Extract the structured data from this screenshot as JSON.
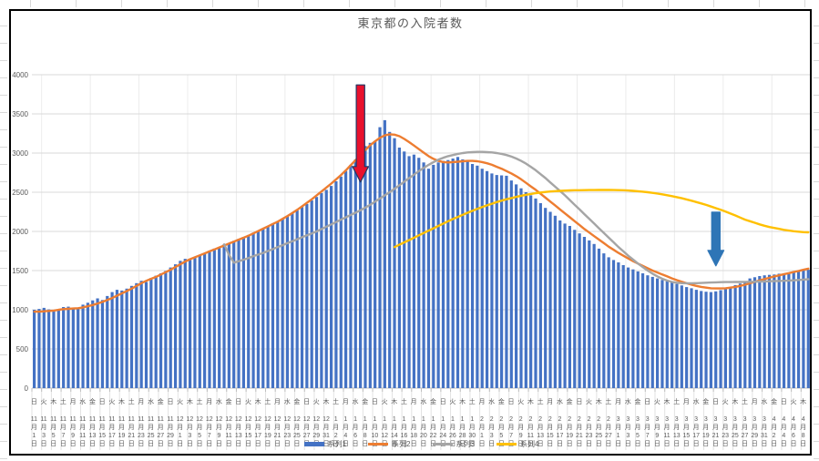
{
  "title": "東京都の入院者数",
  "legend": [
    {
      "label": "系列1",
      "color": "#4472c4",
      "marker": "bar"
    },
    {
      "label": "系列2",
      "color": "#ed7d31",
      "marker": "line"
    },
    {
      "label": "系列3",
      "color": "#a5a5a5",
      "marker": "line"
    },
    {
      "label": "系列4",
      "color": "#ffc000",
      "marker": "line"
    }
  ],
  "annotations": [
    {
      "name": "red-arrow",
      "direction": "down",
      "fill": "#e8112d",
      "outline": "#1f3864",
      "day_index": 67,
      "from_value": 3870,
      "to_value": 2630
    },
    {
      "name": "blue-arrow",
      "direction": "down",
      "fill": "#2e75b6",
      "outline": "#2e75b6",
      "day_index": 140,
      "from_value": 2245,
      "to_value": 1560
    }
  ],
  "chart_data": {
    "type": "bar",
    "title": "東京都の入院者数",
    "ylim": [
      0,
      4000
    ],
    "y_ticks": [
      0,
      500,
      1000,
      1500,
      2000,
      2500,
      3000,
      3500,
      4000
    ],
    "grid": true,
    "gridline_color": "#d9d9d9",
    "x_label_interval_days": 2,
    "x_labels": [
      [
        "日",
        "11",
        "1"
      ],
      [
        "火",
        "11",
        "3"
      ],
      [
        "木",
        "11",
        "5"
      ],
      [
        "土",
        "11",
        "7"
      ],
      [
        "月",
        "11",
        "9"
      ],
      [
        "水",
        "11",
        "11"
      ],
      [
        "金",
        "11",
        "13"
      ],
      [
        "日",
        "11",
        "15"
      ],
      [
        "火",
        "11",
        "17"
      ],
      [
        "木",
        "11",
        "19"
      ],
      [
        "土",
        "11",
        "21"
      ],
      [
        "月",
        "11",
        "23"
      ],
      [
        "水",
        "11",
        "25"
      ],
      [
        "金",
        "11",
        "27"
      ],
      [
        "日",
        "11",
        "29"
      ],
      [
        "火",
        "12",
        "1"
      ],
      [
        "木",
        "12",
        "3"
      ],
      [
        "土",
        "12",
        "5"
      ],
      [
        "月",
        "12",
        "7"
      ],
      [
        "水",
        "12",
        "9"
      ],
      [
        "金",
        "12",
        "11"
      ],
      [
        "日",
        "12",
        "13"
      ],
      [
        "火",
        "12",
        "15"
      ],
      [
        "木",
        "12",
        "17"
      ],
      [
        "土",
        "12",
        "19"
      ],
      [
        "月",
        "12",
        "21"
      ],
      [
        "水",
        "12",
        "23"
      ],
      [
        "金",
        "12",
        "25"
      ],
      [
        "日",
        "12",
        "27"
      ],
      [
        "火",
        "12",
        "29"
      ],
      [
        "木",
        "12",
        "31"
      ],
      [
        "土",
        "1",
        "2"
      ],
      [
        "月",
        "1",
        "4"
      ],
      [
        "水",
        "1",
        "6"
      ],
      [
        "金",
        "1",
        "8"
      ],
      [
        "日",
        "1",
        "10"
      ],
      [
        "火",
        "1",
        "12"
      ],
      [
        "木",
        "1",
        "14"
      ],
      [
        "土",
        "1",
        "16"
      ],
      [
        "月",
        "1",
        "18"
      ],
      [
        "水",
        "1",
        "20"
      ],
      [
        "金",
        "1",
        "22"
      ],
      [
        "日",
        "1",
        "24"
      ],
      [
        "火",
        "1",
        "26"
      ],
      [
        "木",
        "1",
        "28"
      ],
      [
        "土",
        "1",
        "30"
      ],
      [
        "月",
        "2",
        "1"
      ],
      [
        "水",
        "2",
        "3"
      ],
      [
        "金",
        "2",
        "5"
      ],
      [
        "日",
        "2",
        "7"
      ],
      [
        "火",
        "2",
        "9"
      ],
      [
        "木",
        "2",
        "11"
      ],
      [
        "土",
        "2",
        "13"
      ],
      [
        "月",
        "2",
        "15"
      ],
      [
        "水",
        "2",
        "17"
      ],
      [
        "金",
        "2",
        "19"
      ],
      [
        "日",
        "2",
        "21"
      ],
      [
        "火",
        "2",
        "23"
      ],
      [
        "木",
        "2",
        "25"
      ],
      [
        "土",
        "2",
        "27"
      ],
      [
        "月",
        "3",
        "1"
      ],
      [
        "水",
        "3",
        "3"
      ],
      [
        "金",
        "3",
        "5"
      ],
      [
        "日",
        "3",
        "7"
      ],
      [
        "火",
        "3",
        "9"
      ],
      [
        "木",
        "3",
        "11"
      ],
      [
        "土",
        "3",
        "13"
      ],
      [
        "月",
        "3",
        "15"
      ],
      [
        "水",
        "3",
        "17"
      ],
      [
        "金",
        "3",
        "19"
      ],
      [
        "日",
        "3",
        "21"
      ],
      [
        "火",
        "3",
        "23"
      ],
      [
        "木",
        "3",
        "25"
      ],
      [
        "土",
        "3",
        "27"
      ],
      [
        "月",
        "3",
        "29"
      ],
      [
        "水",
        "3",
        "31"
      ],
      [
        "金",
        "4",
        "2"
      ],
      [
        "日",
        "4",
        "4"
      ],
      [
        "火",
        "4",
        "6"
      ],
      [
        "木",
        "4",
        "8"
      ]
    ],
    "series": [
      {
        "name": "系列1",
        "type": "bar",
        "color": "#4472c4",
        "start_index": 0,
        "values": [
          1000,
          1010,
          1025,
          1005,
          990,
          1000,
          1035,
          1040,
          1015,
          1010,
          1065,
          1090,
          1120,
          1145,
          1125,
          1175,
          1225,
          1255,
          1245,
          1270,
          1305,
          1340,
          1370,
          1355,
          1405,
          1435,
          1465,
          1495,
          1540,
          1580,
          1625,
          1650,
          1635,
          1665,
          1700,
          1725,
          1755,
          1780,
          1795,
          1835,
          1855,
          1880,
          1905,
          1930,
          1955,
          1985,
          2010,
          2040,
          2070,
          2100,
          2130,
          2160,
          2195,
          2230,
          2270,
          2310,
          2350,
          2395,
          2440,
          2490,
          2530,
          2580,
          2640,
          2700,
          2770,
          2850,
          2920,
          2980,
          3090,
          3130,
          3150,
          3330,
          3420,
          3270,
          3190,
          3070,
          3020,
          2960,
          2980,
          2940,
          2880,
          2800,
          2850,
          2880,
          2900,
          2910,
          2930,
          2950,
          2920,
          2890,
          2860,
          2840,
          2800,
          2770,
          2740,
          2720,
          2715,
          2710,
          2650,
          2600,
          2550,
          2500,
          2460,
          2420,
          2360,
          2300,
          2250,
          2200,
          2140,
          2100,
          2070,
          2020,
          1975,
          1930,
          1885,
          1840,
          1780,
          1720,
          1670,
          1635,
          1605,
          1570,
          1540,
          1515,
          1490,
          1465,
          1440,
          1420,
          1400,
          1380,
          1365,
          1350,
          1330,
          1310,
          1290,
          1275,
          1255,
          1240,
          1230,
          1225,
          1235,
          1250,
          1270,
          1290,
          1315,
          1335,
          1365,
          1400,
          1415,
          1430,
          1440,
          1445,
          1450,
          1460,
          1465,
          1470,
          1480,
          1490,
          1500,
          1510
        ]
      },
      {
        "name": "系列2",
        "type": "line",
        "color": "#ed7d31",
        "start_index": 0,
        "values": [
          975,
          975,
          980,
          985,
          990,
          1000,
          1008,
          1012,
          1016,
          1020,
          1030,
          1045,
          1060,
          1080,
          1100,
          1125,
          1150,
          1180,
          1210,
          1240,
          1270,
          1305,
          1340,
          1370,
          1395,
          1420,
          1450,
          1480,
          1510,
          1545,
          1580,
          1615,
          1645,
          1670,
          1695,
          1720,
          1745,
          1770,
          1795,
          1820,
          1845,
          1870,
          1895,
          1920,
          1945,
          1975,
          2005,
          2035,
          2065,
          2095,
          2125,
          2160,
          2195,
          2235,
          2275,
          2320,
          2365,
          2410,
          2460,
          2510,
          2560,
          2610,
          2665,
          2720,
          2780,
          2845,
          2910,
          2975,
          3040,
          3100,
          3150,
          3195,
          3225,
          3240,
          3235,
          3215,
          3180,
          3140,
          3095,
          3050,
          3005,
          2960,
          2925,
          2900,
          2885,
          2880,
          2885,
          2890,
          2895,
          2900,
          2900,
          2895,
          2885,
          2870,
          2850,
          2825,
          2800,
          2770,
          2740,
          2705,
          2665,
          2620,
          2575,
          2530,
          2480,
          2430,
          2380,
          2330,
          2280,
          2230,
          2180,
          2130,
          2080,
          2030,
          1985,
          1940,
          1895,
          1850,
          1805,
          1765,
          1725,
          1690,
          1655,
          1620,
          1590,
          1560,
          1530,
          1500,
          1475,
          1450,
          1425,
          1400,
          1378,
          1357,
          1338,
          1320,
          1305,
          1292,
          1282,
          1275,
          1272,
          1272,
          1275,
          1282,
          1292,
          1305,
          1320,
          1338,
          1357,
          1375,
          1392,
          1408,
          1425,
          1440,
          1455,
          1468,
          1482,
          1495,
          1510,
          1525
        ]
      },
      {
        "name": "系列3",
        "type": "line",
        "color": "#a5a5a5",
        "start_index": 39,
        "values": [
          1835,
          1700,
          1600,
          1620,
          1640,
          1660,
          1685,
          1705,
          1725,
          1750,
          1775,
          1800,
          1825,
          1850,
          1875,
          1900,
          1925,
          1950,
          1975,
          2000,
          2030,
          2060,
          2090,
          2120,
          2150,
          2180,
          2210,
          2240,
          2270,
          2305,
          2340,
          2380,
          2420,
          2460,
          2500,
          2545,
          2590,
          2635,
          2680,
          2725,
          2770,
          2810,
          2850,
          2885,
          2915,
          2940,
          2960,
          2975,
          2990,
          3000,
          3008,
          3012,
          3015,
          3015,
          3012,
          3008,
          3000,
          2990,
          2975,
          2955,
          2930,
          2900,
          2865,
          2825,
          2780,
          2730,
          2680,
          2625,
          2570,
          2515,
          2460,
          2400,
          2340,
          2280,
          2220,
          2160,
          2100,
          2040,
          1980,
          1920,
          1860,
          1800,
          1745,
          1690,
          1640,
          1590,
          1545,
          1500,
          1460,
          1425,
          1395,
          1372,
          1355,
          1345,
          1340,
          1338,
          1338,
          1340,
          1342,
          1345,
          1348,
          1350,
          1352,
          1353,
          1354,
          1355,
          1355,
          1356,
          1357,
          1358,
          1360,
          1362,
          1364,
          1366,
          1368,
          1370,
          1373,
          1376,
          1380,
          1385,
          1390
        ]
      },
      {
        "name": "系列4",
        "type": "line",
        "color": "#ffc000",
        "start_index": 74,
        "values": [
          1800,
          1830,
          1860,
          1890,
          1920,
          1950,
          1980,
          2010,
          2040,
          2070,
          2100,
          2130,
          2158,
          2185,
          2212,
          2238,
          2263,
          2288,
          2311,
          2333,
          2354,
          2374,
          2393,
          2410,
          2426,
          2441,
          2455,
          2467,
          2478,
          2488,
          2496,
          2503,
          2509,
          2514,
          2518,
          2521,
          2523,
          2525,
          2526,
          2527,
          2528,
          2528,
          2529,
          2529,
          2529,
          2528,
          2527,
          2525,
          2522,
          2518,
          2513,
          2507,
          2500,
          2492,
          2483,
          2473,
          2462,
          2450,
          2437,
          2423,
          2408,
          2392,
          2375,
          2357,
          2338,
          2318,
          2297,
          2275,
          2252,
          2228,
          2203,
          2177,
          2150,
          2130,
          2110,
          2090,
          2072,
          2056,
          2044,
          2032,
          2020,
          2010,
          2002,
          1996,
          1991,
          1988
        ]
      }
    ]
  }
}
